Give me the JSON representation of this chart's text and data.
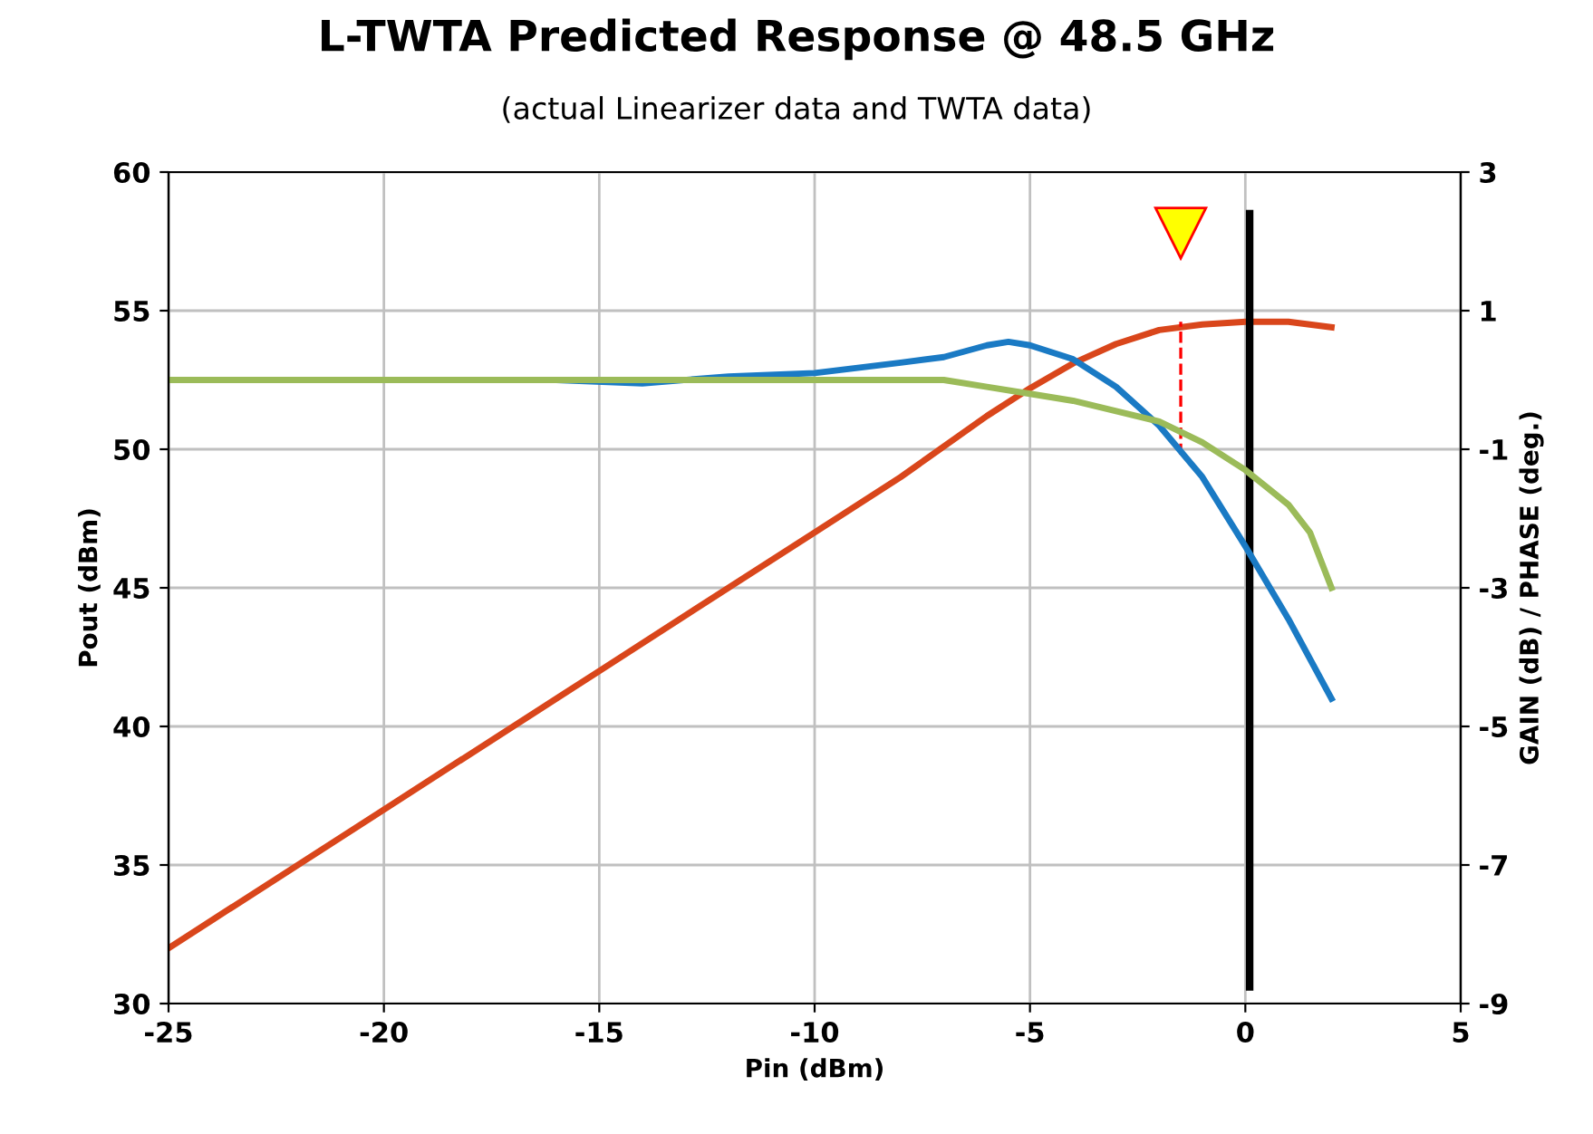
{
  "chart_data": {
    "type": "line",
    "title": "L-TWTA Predicted Response @ 48.5 GHz",
    "subtitle": "(actual Linearizer data and TWTA data)",
    "xlabel": "Pin (dBm)",
    "ylabel": "Pout (dBm)",
    "y2label": "GAIN (dB) / PHASE (deg.)",
    "xlim": [
      -25,
      5
    ],
    "xticks": [
      -25,
      -20,
      -15,
      -10,
      -5,
      0,
      5
    ],
    "ylim": [
      30,
      60
    ],
    "yticks": [
      30,
      35,
      40,
      45,
      50,
      55,
      60
    ],
    "y2lim": [
      -9,
      3
    ],
    "y2ticks": [
      -9,
      -7,
      -5,
      -3,
      -1,
      1,
      3
    ],
    "grid": true,
    "marker": "none",
    "line_style": "solid",
    "series": [
      {
        "color": "#d9461b",
        "x": [
          -25,
          -20,
          -15,
          -10,
          -8,
          -6,
          -5,
          -4,
          -3,
          -2,
          -1,
          0,
          1,
          2
        ],
        "values": [
          32,
          37,
          42,
          47,
          49,
          51.2,
          52.2,
          53.1,
          53.8,
          54.3,
          54.5,
          54.6,
          54.6,
          54.4
        ]
      },
      {
        "color": "#1a7ac4",
        "axis": "y2",
        "x": [
          -25,
          -16,
          -14,
          -12,
          -10,
          -8,
          -7,
          -6,
          -5.5,
          -5,
          -4,
          -3,
          -2,
          -1,
          0,
          1,
          2
        ],
        "values": [
          0,
          0,
          -0.05,
          0.05,
          0.1,
          0.25,
          0.33,
          0.5,
          0.55,
          0.5,
          0.3,
          -0.1,
          -0.66,
          -1.4,
          -2.4,
          -3.45,
          -4.6
        ]
      },
      {
        "color": "#9bbb59",
        "axis": "y2",
        "x": [
          -25,
          -7,
          -6,
          -5,
          -4,
          -3,
          -2,
          -1,
          0,
          0.5,
          1,
          1.5,
          2
        ],
        "values": [
          0,
          0,
          -0.1,
          -0.2,
          -0.3,
          -0.45,
          -0.6,
          -0.9,
          -1.3,
          -1.55,
          -1.8,
          -2.2,
          -3.0
        ]
      }
    ],
    "ref_lines": [
      {
        "axis": "x",
        "value": 0.1,
        "color": "#000000",
        "line_style": "solid"
      },
      {
        "axis": "x",
        "value": -1.5,
        "color": "#ff0000",
        "line_style": "dashed"
      }
    ]
  }
}
